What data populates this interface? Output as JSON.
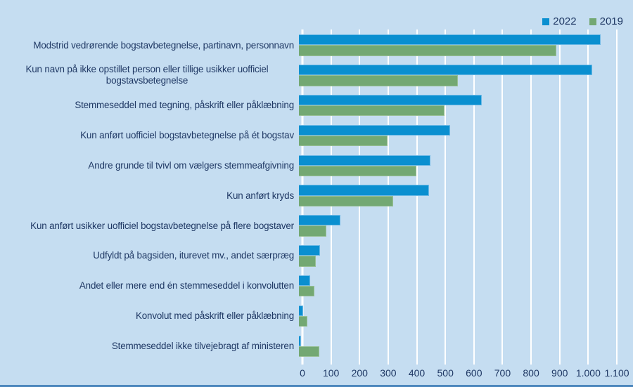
{
  "colors": {
    "background": "#c5ddf1",
    "text": "#1f3864",
    "gridline": "#ffffff",
    "bottom_rule": "#4d87bd",
    "series_2022": "#0a8fd0",
    "series_2019": "#73a873"
  },
  "chart_data": {
    "type": "bar",
    "orientation": "horizontal",
    "title": "",
    "xlabel": "",
    "ylabel": "",
    "xlim": [
      0,
      1100
    ],
    "grid": "vertical-white-gridlines",
    "legend_position": "top-right",
    "categories": [
      "Modstrid vedrørende bogstavbetegnelse, partinavn, personnavn",
      "Kun navn på ikke opstillet person eller tillige usikker uofficiel bogstavsbetegnelse",
      "Stemmeseddel med tegning, påskrift eller påklæbning",
      "Kun anført uofficiel bogstavbetegnelse på ét bogstav",
      "Andre grunde til tvivl om vælgers stemmeafgivning",
      "Kun anført kryds",
      "Kun anført usikker uofficiel bogstavbetegnelse på flere bogstaver",
      "Udfyldt på bagsiden, iturevet mv., andet særpræg",
      "Andet eller mere end én stemmeseddel i konvolutten",
      "Konvolut med påskrift eller påklæbning",
      "Stemmeseddel ikke tilvejebragt af ministeren"
    ],
    "series": [
      {
        "name": "2022",
        "color": "#0a8fd0",
        "border_color": "#6db9e6",
        "values": [
          1055,
          1025,
          640,
          530,
          460,
          455,
          145,
          75,
          40,
          15,
          8
        ]
      },
      {
        "name": "2019",
        "color": "#73a873",
        "border_color": "#98bf95",
        "values": [
          900,
          555,
          510,
          310,
          410,
          330,
          95,
          60,
          55,
          30,
          72
        ]
      }
    ],
    "xticks": [
      0,
      100,
      200,
      300,
      400,
      500,
      600,
      700,
      800,
      900,
      1000,
      1100
    ],
    "xtick_labels": [
      "0",
      "100",
      "200",
      "300",
      "400",
      "500",
      "600",
      "700",
      "800",
      "900",
      "1.000",
      "1.100"
    ]
  }
}
